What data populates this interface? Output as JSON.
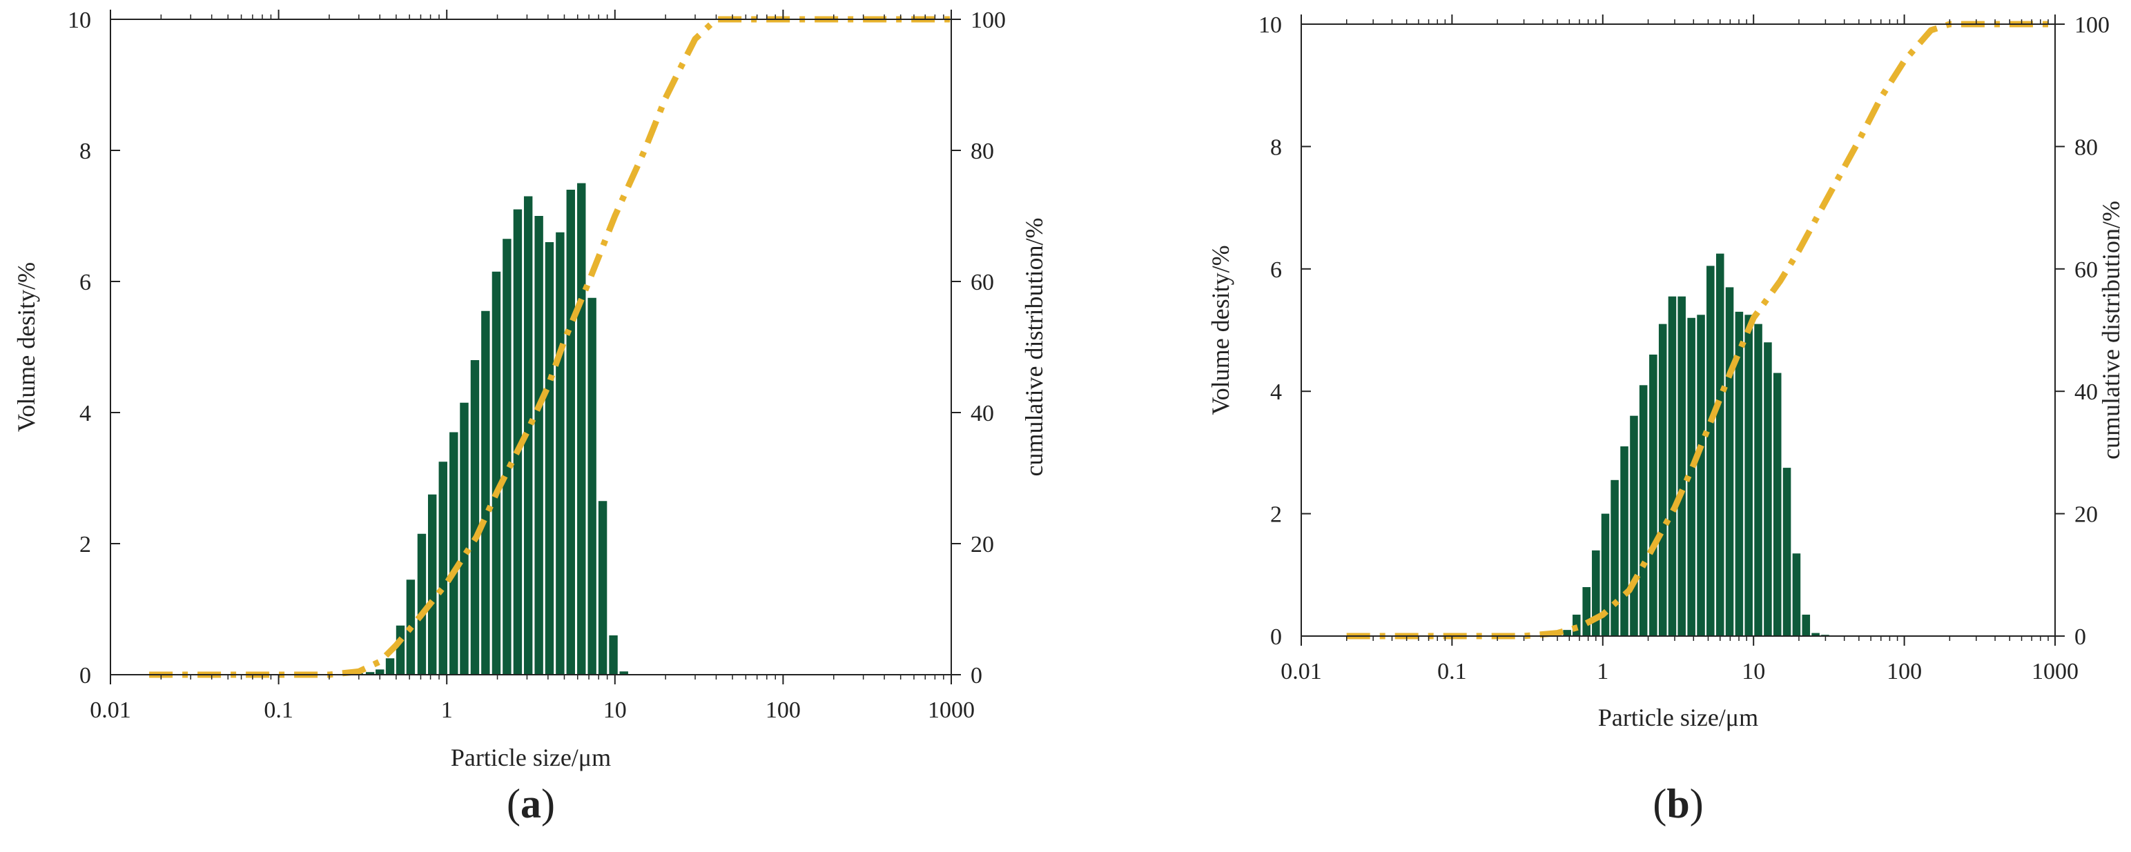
{
  "chart_data": [
    {
      "panel_label": "a",
      "type": "bar+line",
      "xscale": "log",
      "xlabel": "Particle size/μm",
      "ylabel": "Volume desity/%",
      "y2label": "cumulative distribution/%",
      "xlim": [
        0.01,
        1000
      ],
      "ylim": [
        0,
        10
      ],
      "y2lim": [
        0,
        100
      ],
      "xticks": [
        "0.01",
        "0.1",
        "1",
        "10",
        "100",
        "1000"
      ],
      "yticks": [
        "0",
        "2",
        "4",
        "6",
        "8",
        "10"
      ],
      "y2ticks": [
        "0",
        "20",
        "40",
        "60",
        "80",
        "100"
      ],
      "grid": false,
      "colors": {
        "bars": "#0e5a3a",
        "cumulative": "#e8b32e"
      },
      "bars": {
        "x": [
          0.26,
          0.3,
          0.35,
          0.4,
          0.46,
          0.53,
          0.61,
          0.71,
          0.82,
          0.95,
          1.1,
          1.27,
          1.47,
          1.7,
          1.97,
          2.28,
          2.64,
          3.05,
          3.53,
          4.08,
          4.72,
          5.46,
          6.32,
          7.31,
          8.46,
          9.79,
          11.3,
          13.1,
          15.2,
          17.5,
          20.3,
          23.5,
          27.2,
          31.4,
          36.4,
          42.1,
          48.7
        ],
        "values": [
          0.01,
          0.02,
          0.04,
          0.08,
          0.25,
          0.75,
          1.45,
          2.15,
          2.75,
          3.25,
          3.7,
          4.15,
          4.8,
          5.55,
          6.15,
          6.65,
          7.1,
          7.3,
          7.0,
          6.6,
          6.75,
          7.4,
          7.5,
          5.75,
          2.65,
          0.6,
          0.05,
          0.0,
          0.0,
          0.0,
          0.0,
          0.0,
          0.0,
          0.0,
          0.0,
          0.0,
          0.0
        ]
      },
      "cumulative": {
        "x": [
          0.017,
          0.1,
          0.2,
          0.3,
          0.4,
          0.5,
          0.7,
          1,
          1.5,
          2,
          3,
          4,
          5,
          7,
          10,
          15,
          20,
          25,
          30,
          40,
          50,
          100,
          1000
        ],
        "values": [
          0,
          0,
          0,
          0.5,
          2,
          4.5,
          9,
          14,
          21,
          28,
          37,
          44,
          51,
          60,
          70,
          80,
          88,
          93,
          97,
          100,
          100,
          100,
          100
        ]
      }
    },
    {
      "panel_label": "b",
      "type": "bar+line",
      "xscale": "log",
      "xlabel": "Particle size/μm",
      "ylabel": "Volume desity/%",
      "y2label": "cumulative distribution/%",
      "xlim": [
        0.01,
        1000
      ],
      "ylim": [
        0,
        10
      ],
      "y2lim": [
        0,
        100
      ],
      "xticks": [
        "0.01",
        "0.1",
        "1",
        "10",
        "100",
        "1000"
      ],
      "yticks": [
        "0",
        "2",
        "4",
        "6",
        "8",
        "10"
      ],
      "y2ticks": [
        "0",
        "20",
        "40",
        "60",
        "80",
        "100"
      ],
      "grid": false,
      "colors": {
        "bars": "#0e5a3a",
        "cumulative": "#e8b32e"
      },
      "bars": {
        "x": [
          0.5,
          0.58,
          0.67,
          0.78,
          0.9,
          1.04,
          1.2,
          1.39,
          1.61,
          1.86,
          2.16,
          2.5,
          2.89,
          3.34,
          3.87,
          4.48,
          5.18,
          6.0,
          6.94,
          8.03,
          9.29,
          10.75,
          12.44,
          14.39,
          16.65,
          19.27,
          22.3,
          25.8,
          29.85,
          34.54,
          39.97,
          46.25,
          53.51,
          61.92,
          71.65,
          82.9,
          95.92,
          111,
          128.4,
          148.6,
          172,
          199,
          230.2,
          266.4,
          308.3,
          356.7
        ],
        "values": [
          0.05,
          0.1,
          0.35,
          0.8,
          1.4,
          2.0,
          2.55,
          3.1,
          3.6,
          4.1,
          4.6,
          5.1,
          5.55,
          5.55,
          5.2,
          5.25,
          6.05,
          6.25,
          5.7,
          5.3,
          5.25,
          5.1,
          4.8,
          4.3,
          2.75,
          1.35,
          0.35,
          0.05,
          0.02,
          0.0,
          0.0,
          0.0,
          0.0,
          0.0,
          0.0,
          0.0,
          0.0,
          0.0,
          0.0,
          0.0,
          0.0,
          0.0,
          0.0,
          0.0,
          0.0,
          0.0
        ]
      },
      "cumulative": {
        "x": [
          0.02,
          0.1,
          0.3,
          0.5,
          0.7,
          1,
          1.5,
          2,
          3,
          4,
          5,
          7,
          10,
          15,
          20,
          30,
          50,
          70,
          100,
          150,
          200,
          1000
        ],
        "values": [
          0,
          0,
          0,
          0.5,
          1.5,
          3.5,
          7.5,
          13,
          21,
          28,
          34,
          43,
          52,
          58,
          63,
          71,
          81,
          88,
          94,
          99,
          100,
          100
        ]
      }
    }
  ]
}
